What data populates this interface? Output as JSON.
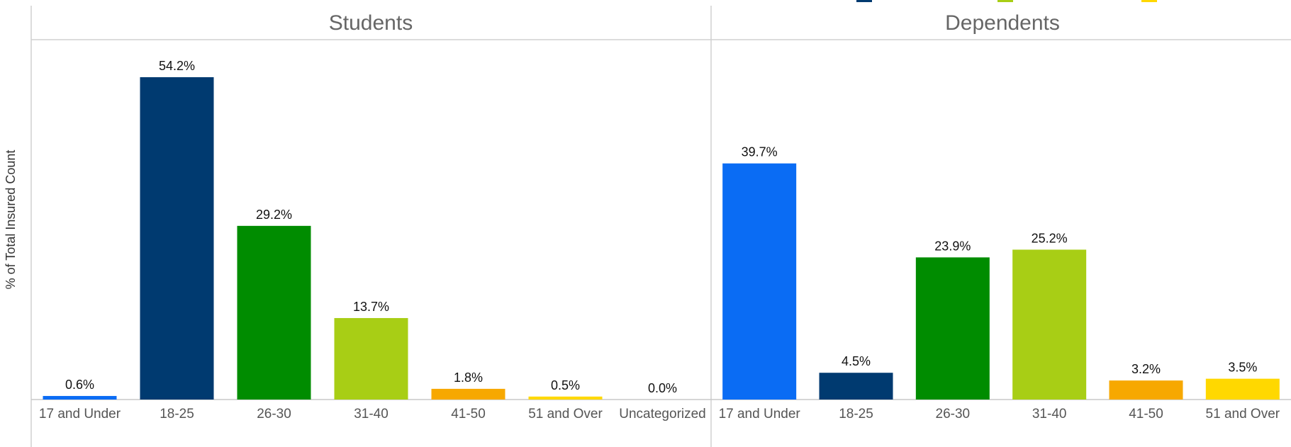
{
  "chart_data": {
    "type": "bar",
    "ylabel": "% of Total Insured Count",
    "ylim": [
      0,
      60
    ],
    "legend": {
      "placement": "top-right"
    },
    "colors": {
      "17 and Under": "#0A6CF4",
      "18-25": "#003A70",
      "26-30": "#008C00",
      "31-40": "#A8CE15",
      "41-50": "#F7A800",
      "51 and Over": "#FFD800",
      "Uncategorized": "#9E9E9E"
    },
    "panels": [
      {
        "title": "Students",
        "categories": [
          "17 and Under",
          "18-25",
          "26-30",
          "31-40",
          "41-50",
          "51 and Over",
          "Uncategorized"
        ],
        "values": [
          0.6,
          54.2,
          29.2,
          13.7,
          1.8,
          0.5,
          0.0
        ],
        "labels": [
          "0.6%",
          "54.2%",
          "29.2%",
          "13.7%",
          "1.8%",
          "0.5%",
          "0.0%"
        ]
      },
      {
        "title": "Dependents",
        "categories": [
          "17 and Under",
          "18-25",
          "26-30",
          "31-40",
          "41-50",
          "51 and Over"
        ],
        "values": [
          39.7,
          4.5,
          23.9,
          25.2,
          3.2,
          3.5
        ],
        "labels": [
          "39.7%",
          "4.5%",
          "23.9%",
          "25.2%",
          "3.2%",
          "3.5%"
        ]
      }
    ]
  }
}
